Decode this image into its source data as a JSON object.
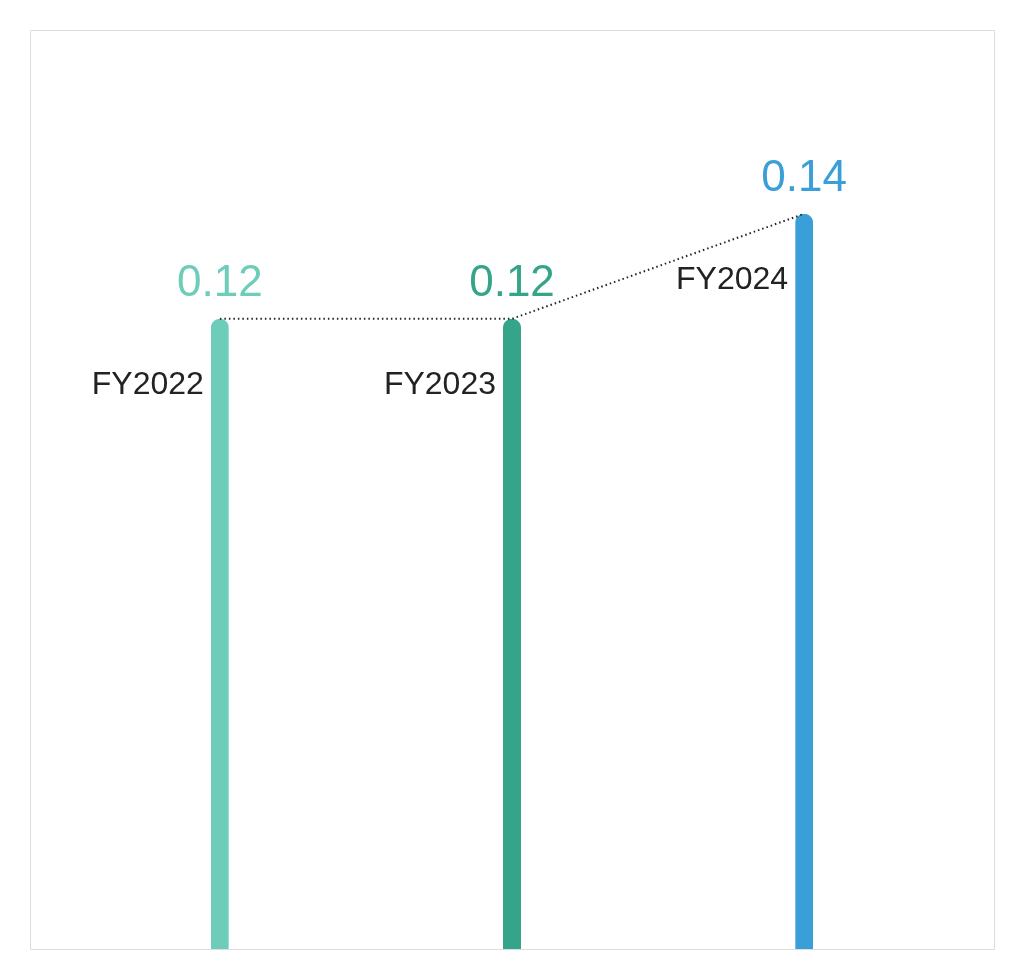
{
  "chart_data": {
    "type": "bar",
    "categories": [
      "FY2022",
      "FY2023",
      "FY2024"
    ],
    "series": [
      {
        "colors": [
          "#6ecdb8",
          "#35a58a",
          "#3a9fd8"
        ],
        "values": [
          0.12,
          0.12,
          0.14
        ],
        "value_labels": [
          "0.12",
          "0.12",
          "0.14"
        ]
      },
      {
        "type": "line",
        "color": "#222222",
        "line_style": "dotted",
        "marker": "none",
        "values": [
          0.12,
          0.12,
          0.14
        ]
      }
    ],
    "tick_labels": false
  }
}
